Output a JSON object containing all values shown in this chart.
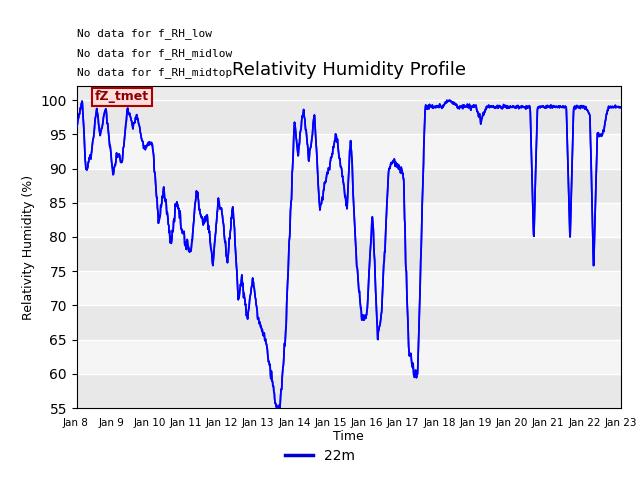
{
  "title": "Relativity Humidity Profile",
  "xlabel": "Time",
  "ylabel": "Relativity Humidity (%)",
  "ylim": [
    55,
    102
  ],
  "yticks": [
    55,
    60,
    65,
    70,
    75,
    80,
    85,
    90,
    95,
    100
  ],
  "line_color": "#0000FF",
  "line_width": 1.2,
  "legend_label": "22m",
  "legend_color": "#0000CC",
  "text_lines": [
    "No data for f_RH_low",
    "No data for f_RH_midlow",
    "No data for f_RH_midtop"
  ],
  "tooltip_text": "fZ_tmet",
  "background_color": "#ffffff",
  "plot_bg_color": "#ebebeb",
  "grid_color": "#ffffff",
  "x_start": 8,
  "x_end": 23,
  "xtick_labels": [
    "Jan 8 ",
    "Jan 9 ",
    "Jan 10",
    "Jan 11",
    "Jan 12",
    "Jan 13",
    "Jan 14",
    "Jan 15",
    "Jan 16",
    "Jan 17",
    "Jan 18",
    "Jan 19",
    "Jan 20",
    "Jan 21",
    "Jan 22",
    "Jan 23"
  ],
  "xtick_positions": [
    8,
    9,
    10,
    11,
    12,
    13,
    14,
    15,
    16,
    17,
    18,
    19,
    20,
    21,
    22,
    23
  ]
}
